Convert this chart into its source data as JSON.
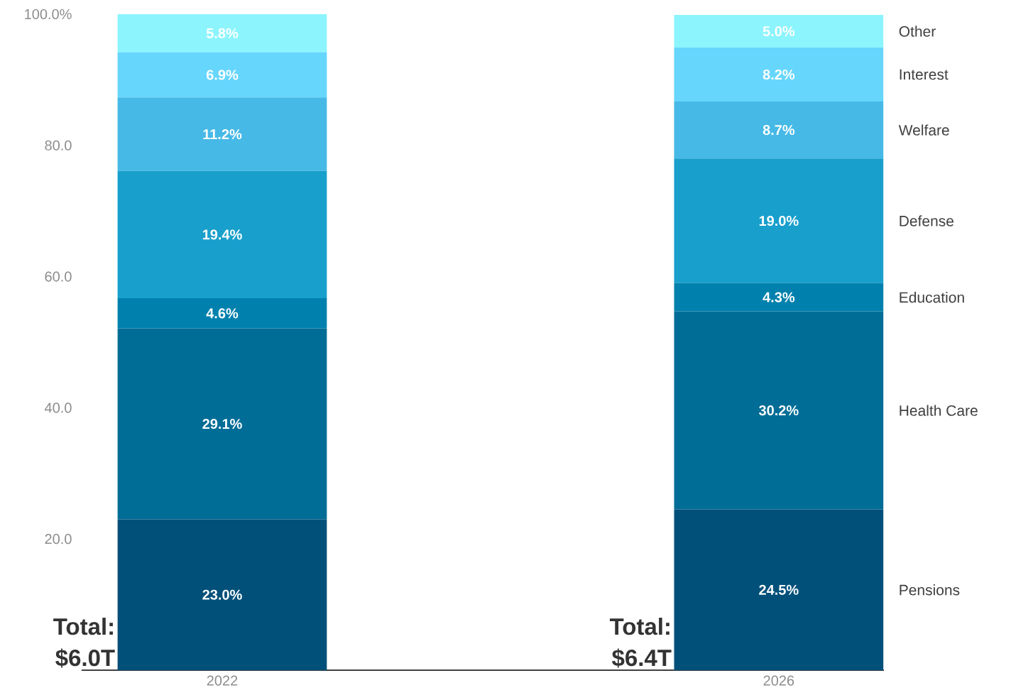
{
  "chart_data": {
    "type": "bar",
    "stacked": true,
    "categories": [
      "2022",
      "2026"
    ],
    "series": [
      {
        "name": "Pensions",
        "color": "#00507a",
        "values": [
          23.0,
          24.5
        ],
        "value_labels": [
          "23.0%",
          "24.5%"
        ]
      },
      {
        "name": "Health Care",
        "color": "#006d96",
        "values": [
          29.1,
          30.2
        ],
        "value_labels": [
          "29.1%",
          "30.2%"
        ]
      },
      {
        "name": "Education",
        "color": "#0081ad",
        "values": [
          4.6,
          4.3
        ],
        "value_labels": [
          "4.6%",
          "4.3%"
        ]
      },
      {
        "name": "Defense",
        "color": "#189fcc",
        "values": [
          19.4,
          19.0
        ],
        "value_labels": [
          "19.4%",
          "19.0%"
        ]
      },
      {
        "name": "Welfare",
        "color": "#46b9e6",
        "values": [
          11.2,
          8.7
        ],
        "value_labels": [
          "11.2%",
          "8.7%"
        ]
      },
      {
        "name": "Interest",
        "color": "#66d6fd",
        "values": [
          6.9,
          8.2
        ],
        "value_labels": [
          "6.9%",
          "8.2%"
        ]
      },
      {
        "name": "Other",
        "color": "#8cf4fd",
        "values": [
          5.8,
          5.0
        ],
        "value_labels": [
          "5.8%",
          "5.0%"
        ]
      }
    ],
    "ylim": [
      0,
      100
    ],
    "yticks": [
      {
        "value": 20,
        "label": "20.0"
      },
      {
        "value": 40,
        "label": "40.0"
      },
      {
        "value": 60,
        "label": "60.0"
      },
      {
        "value": 80,
        "label": "80.0"
      },
      {
        "value": 100,
        "label": "100.0%"
      }
    ],
    "annotations": [
      "Total: $6.0T",
      "Total: $6.4T"
    ]
  }
}
